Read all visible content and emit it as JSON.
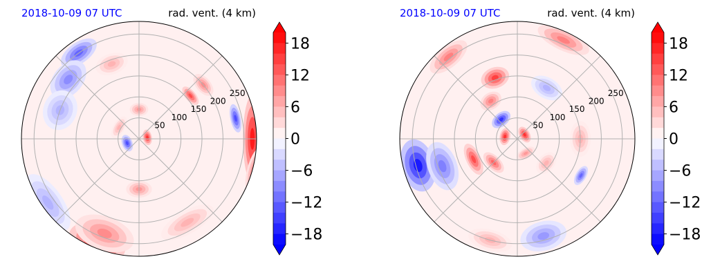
{
  "figure": {
    "background": "#ffffff",
    "colors": {
      "title_left": "#0000ff",
      "title_right": "#000000",
      "grid": "#b0b0b0",
      "outline": "#000000",
      "negative_max": "#0000ff",
      "positive_max": "#ff0000",
      "neutral": "#ffffff"
    }
  },
  "chart_data": [
    {
      "type": "polar-filled-contour",
      "title_left": "2018-10-09 07 UTC",
      "title_right": "rad. vent. (4 km)",
      "radial_ticks": [
        50,
        100,
        150,
        200,
        250
      ],
      "radial_tick_labels": [
        "50",
        "100",
        "150",
        "200",
        "250"
      ],
      "rlim": [
        0,
        280
      ],
      "angular_grid_deg": 45,
      "grid": true,
      "colorbar": {
        "ticks": [
          18,
          12,
          6,
          0,
          -6,
          -12,
          -18
        ],
        "tick_labels": [
          "18",
          "12",
          "6",
          "0",
          "−6",
          "−12",
          "−18"
        ],
        "vmin": -20,
        "vmax": 20,
        "levels": 20,
        "extend": "both",
        "cmap": "bwr"
      },
      "features": [
        {
          "r": 270,
          "theta": 0,
          "value": 18,
          "dr": 35,
          "dt": 40
        },
        {
          "r": 265,
          "theta": 248,
          "value": 16,
          "dr": 70,
          "dt": 26
        },
        {
          "r": 240,
          "theta": 250,
          "value": 9,
          "dr": 70,
          "dt": 30
        },
        {
          "r": 285,
          "theta": 345,
          "value": 10,
          "dr": 25,
          "dt": 18
        },
        {
          "r": 265,
          "theta": 215,
          "value": -6,
          "dr": 60,
          "dt": 30
        },
        {
          "r": 250,
          "theta": 125,
          "value": -12,
          "dr": 40,
          "dt": 18
        },
        {
          "r": 220,
          "theta": 140,
          "value": -9,
          "dr": 60,
          "dt": 22
        },
        {
          "r": 200,
          "theta": 160,
          "value": -6,
          "dr": 70,
          "dt": 22
        },
        {
          "r": 190,
          "theta": 110,
          "value": 6,
          "dr": 40,
          "dt": 18
        },
        {
          "r": 120,
          "theta": 270,
          "value": 8,
          "dr": 30,
          "dt": 20
        },
        {
          "r": 70,
          "theta": 90,
          "value": 8,
          "dr": 22,
          "dt": 20
        },
        {
          "r": 30,
          "theta": 200,
          "value": -14,
          "dr": 15,
          "dt": 40
        },
        {
          "r": 20,
          "theta": 10,
          "value": 16,
          "dr": 12,
          "dt": 50
        },
        {
          "r": 55,
          "theta": 150,
          "value": 6,
          "dr": 18,
          "dt": 40
        },
        {
          "r": 160,
          "theta": 40,
          "value": 14,
          "dr": 15,
          "dt": 12
        },
        {
          "r": 235,
          "theta": 12,
          "value": -14,
          "dr": 15,
          "dt": 12
        },
        {
          "r": 200,
          "theta": 40,
          "value": 9,
          "dr": 25,
          "dt": 12
        },
        {
          "r": 230,
          "theta": 300,
          "value": 6,
          "dr": 45,
          "dt": 30
        }
      ]
    },
    {
      "type": "polar-filled-contour",
      "title_left": "2018-10-09 07 UTC",
      "title_right": "rad. vent. (4 km)",
      "radial_ticks": [
        50,
        100,
        150,
        200,
        250
      ],
      "radial_tick_labels": [
        "50",
        "100",
        "150",
        "200",
        "250"
      ],
      "rlim": [
        0,
        280
      ],
      "angular_grid_deg": 45,
      "grid": true,
      "colorbar": {
        "ticks": [
          18,
          12,
          6,
          0,
          -6,
          -12,
          -18
        ],
        "tick_labels": [
          "18",
          "12",
          "6",
          "0",
          "−6",
          "−12",
          "−18"
        ],
        "vmin": -20,
        "vmax": 20,
        "levels": 20,
        "extend": "both",
        "cmap": "bwr"
      },
      "features": [
        {
          "r": 245,
          "theta": 195,
          "value": -18,
          "dr": 70,
          "dt": 25
        },
        {
          "r": 190,
          "theta": 200,
          "value": -10,
          "dr": 60,
          "dt": 30
        },
        {
          "r": 240,
          "theta": 285,
          "value": -8,
          "dr": 60,
          "dt": 22
        },
        {
          "r": 250,
          "theta": 255,
          "value": 6,
          "dr": 40,
          "dt": 20
        },
        {
          "r": 155,
          "theta": 110,
          "value": 15,
          "dr": 40,
          "dt": 18
        },
        {
          "r": 110,
          "theta": 125,
          "value": 10,
          "dr": 30,
          "dt": 18
        },
        {
          "r": 115,
          "theta": 205,
          "value": 14,
          "dr": 25,
          "dt": 30
        },
        {
          "r": 80,
          "theta": 225,
          "value": 12,
          "dr": 22,
          "dt": 30
        },
        {
          "r": 60,
          "theta": 130,
          "value": -16,
          "dr": 22,
          "dt": 30
        },
        {
          "r": 30,
          "theta": 170,
          "value": 16,
          "dr": 15,
          "dt": 40
        },
        {
          "r": 20,
          "theta": 30,
          "value": 16,
          "dr": 15,
          "dt": 60
        },
        {
          "r": 40,
          "theta": 300,
          "value": 8,
          "dr": 15,
          "dt": 40
        },
        {
          "r": 260,
          "theta": 65,
          "value": 10,
          "dr": 40,
          "dt": 25
        },
        {
          "r": 255,
          "theta": 130,
          "value": 10,
          "dr": 40,
          "dt": 20
        },
        {
          "r": 140,
          "theta": 60,
          "value": -6,
          "dr": 40,
          "dt": 25
        },
        {
          "r": 175,
          "theta": 330,
          "value": -12,
          "dr": 15,
          "dt": 10
        },
        {
          "r": 150,
          "theta": 0,
          "value": 6,
          "dr": 40,
          "dt": 25
        },
        {
          "r": 90,
          "theta": 320,
          "value": 6,
          "dr": 30,
          "dt": 25
        }
      ]
    }
  ]
}
